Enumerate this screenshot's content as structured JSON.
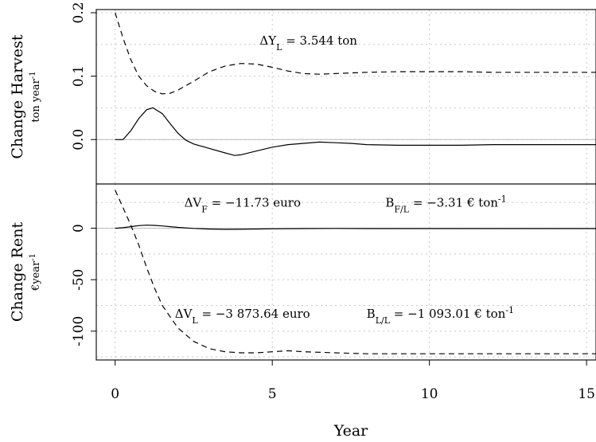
{
  "chart_data": [
    {
      "type": "line",
      "panel": "top",
      "ylabel": "Change Harvest",
      "yunit": "ton year",
      "yunit_sup": "-1",
      "xlim": [
        -0.6,
        15.3
      ],
      "ylim": [
        -0.07,
        0.205
      ],
      "yticks": [
        0.0,
        0.1,
        0.2
      ],
      "ytick_labels": [
        "0.0",
        "0.1",
        "0.2"
      ],
      "xgrid": [
        0,
        5,
        10,
        15
      ],
      "ygrid": [
        0.0,
        0.05,
        0.1,
        0.15,
        0.2
      ],
      "grid": true,
      "annotations": [
        {
          "name": "delta-yl",
          "parts": [
            "ΔY",
            "L",
            " = 3.544 ton",
            ""
          ],
          "x": 4.6,
          "y": 0.15
        }
      ],
      "series": [
        {
          "style": "dashed",
          "x": [
            0,
            0.25,
            0.5,
            0.75,
            1.0,
            1.25,
            1.5,
            1.75,
            2.0,
            2.5,
            3.0,
            3.5,
            4.0,
            4.5,
            5.0,
            5.5,
            6.0,
            6.5,
            7.0,
            8.0,
            9.0,
            10.0,
            11.0,
            12.0,
            13.0,
            14.0,
            15.3
          ],
          "y": [
            0.2,
            0.16,
            0.126,
            0.1,
            0.085,
            0.076,
            0.072,
            0.073,
            0.078,
            0.092,
            0.107,
            0.116,
            0.12,
            0.119,
            0.114,
            0.108,
            0.104,
            0.103,
            0.104,
            0.106,
            0.107,
            0.107,
            0.107,
            0.106,
            0.106,
            0.106,
            0.106
          ]
        },
        {
          "style": "solid",
          "x": [
            0,
            0.25,
            0.5,
            0.75,
            1.0,
            1.2,
            1.5,
            1.75,
            2.0,
            2.25,
            2.5,
            3.0,
            3.5,
            3.8,
            4.0,
            4.5,
            5.0,
            5.5,
            6.0,
            6.5,
            7.0,
            7.5,
            8.0,
            9.0,
            10.0,
            11.0,
            12.0,
            13.0,
            14.0,
            15.3
          ],
          "y": [
            0.0,
            0.0,
            0.014,
            0.033,
            0.047,
            0.05,
            0.041,
            0.025,
            0.01,
            -0.001,
            -0.007,
            -0.014,
            -0.021,
            -0.025,
            -0.024,
            -0.018,
            -0.012,
            -0.008,
            -0.006,
            -0.004,
            -0.005,
            -0.006,
            -0.008,
            -0.009,
            -0.009,
            -0.009,
            -0.008,
            -0.008,
            -0.008,
            -0.008
          ]
        }
      ]
    },
    {
      "type": "line",
      "panel": "bottom",
      "ylabel": "Change Rent",
      "yunit": "€year",
      "yunit_sup": "-1",
      "xlabel": "Year",
      "xlim": [
        -0.6,
        15.3
      ],
      "ylim": [
        -128,
        43
      ],
      "xticks": [
        0,
        5,
        10,
        15
      ],
      "xtick_labels": [
        "0",
        "5",
        "10",
        "15"
      ],
      "yticks": [
        0,
        -50,
        -100
      ],
      "ytick_labels": [
        "0",
        "-50",
        "-100"
      ],
      "xgrid": [
        0,
        5,
        10,
        15
      ],
      "ygrid": [
        -125,
        -100,
        -75,
        -50,
        -25,
        0,
        25
      ],
      "grid": true,
      "annotations": [
        {
          "name": "delta-vf",
          "parts": [
            "ΔV",
            "F",
            " = −11.73 euro",
            ""
          ],
          "x": 2.2,
          "y": 21
        },
        {
          "name": "b-fl",
          "parts": [
            "B",
            "F/L",
            " = −3.31 € ton",
            "-1"
          ],
          "x": 8.6,
          "y": 21
        },
        {
          "name": "delta-vl",
          "parts": [
            "ΔV",
            "L",
            " = −3 873.64 euro",
            ""
          ],
          "x": 1.9,
          "y": -87
        },
        {
          "name": "b-ll",
          "parts": [
            "B",
            "L/L",
            " = −1 093.01 € ton",
            "-1"
          ],
          "x": 8.0,
          "y": -87
        }
      ],
      "series": [
        {
          "style": "dashed",
          "x": [
            0,
            0.25,
            0.5,
            0.75,
            1.0,
            1.25,
            1.5,
            2.0,
            2.5,
            3.0,
            3.5,
            4.0,
            4.5,
            5.0,
            5.5,
            6.0,
            7.0,
            8.0,
            9.0,
            10.0,
            11.0,
            12.0,
            13.0,
            14.0,
            15.3
          ],
          "y": [
            37,
            20,
            3,
            -16,
            -38,
            -58,
            -75,
            -97,
            -110,
            -117,
            -120,
            -121,
            -121,
            -120,
            -119,
            -120,
            -121,
            -122,
            -122,
            -122,
            -122,
            -122,
            -122,
            -122,
            -122
          ]
        },
        {
          "style": "solid",
          "x": [
            0,
            0.25,
            0.5,
            0.75,
            1.0,
            1.25,
            1.5,
            1.75,
            2.0,
            2.5,
            3.0,
            3.5,
            4.0,
            5.0,
            6.0,
            7.0,
            8.0,
            10.0,
            12.0,
            15.3
          ],
          "y": [
            0,
            0.5,
            1.5,
            2.5,
            3.0,
            2.8,
            2.2,
            1.5,
            0.8,
            -0.2,
            -0.8,
            -1.1,
            -1.0,
            -0.6,
            -0.3,
            -0.2,
            -0.3,
            -0.3,
            -0.3,
            -0.3
          ]
        }
      ]
    }
  ]
}
